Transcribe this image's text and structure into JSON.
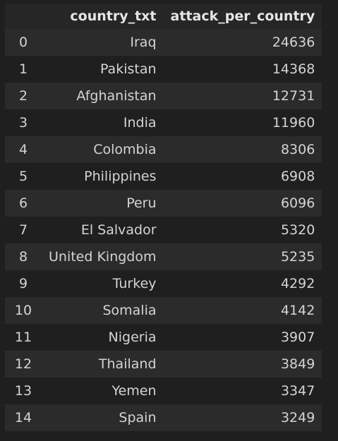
{
  "table": {
    "columns": [
      "",
      "country_txt",
      "attack_per_country"
    ],
    "rows": [
      {
        "index": "0",
        "country": "Iraq",
        "attacks": "24636"
      },
      {
        "index": "1",
        "country": "Pakistan",
        "attacks": "14368"
      },
      {
        "index": "2",
        "country": "Afghanistan",
        "attacks": "12731"
      },
      {
        "index": "3",
        "country": "India",
        "attacks": "11960"
      },
      {
        "index": "4",
        "country": "Colombia",
        "attacks": "8306"
      },
      {
        "index": "5",
        "country": "Philippines",
        "attacks": "6908"
      },
      {
        "index": "6",
        "country": "Peru",
        "attacks": "6096"
      },
      {
        "index": "7",
        "country": "El Salvador",
        "attacks": "5320"
      },
      {
        "index": "8",
        "country": "United Kingdom",
        "attacks": "5235"
      },
      {
        "index": "9",
        "country": "Turkey",
        "attacks": "4292"
      },
      {
        "index": "10",
        "country": "Somalia",
        "attacks": "4142"
      },
      {
        "index": "11",
        "country": "Nigeria",
        "attacks": "3907"
      },
      {
        "index": "12",
        "country": "Thailand",
        "attacks": "3849"
      },
      {
        "index": "13",
        "country": "Yemen",
        "attacks": "3347"
      },
      {
        "index": "14",
        "country": "Spain",
        "attacks": "3249"
      }
    ]
  },
  "colors": {
    "background": "#1f1f1f",
    "row_stripe": "#2b2b2b",
    "header_bg": "#262626",
    "text": "#d4d4d4"
  }
}
